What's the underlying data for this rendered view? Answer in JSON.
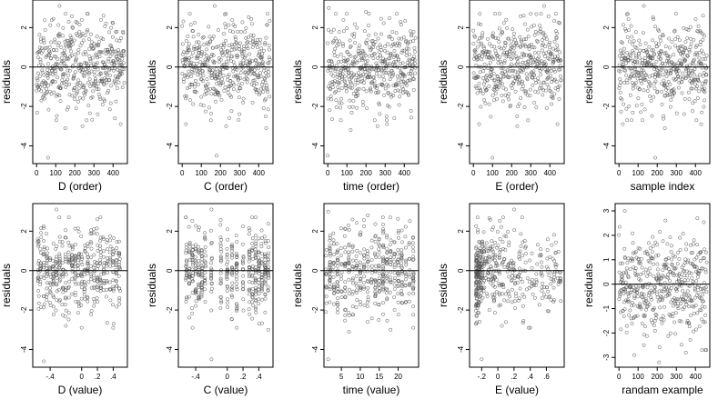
{
  "chart_data": [
    {
      "type": "scatter",
      "title": "",
      "xlabel": "D (order)",
      "ylabel": "residuals",
      "xlim": [
        -20,
        475
      ],
      "ylim": [
        -4.9,
        3.4
      ],
      "x_ticks": [
        0,
        100,
        200,
        300,
        400
      ],
      "y_ticks": [
        -4,
        -2,
        0,
        2
      ],
      "hline": 0,
      "points": {
        "gen": "order",
        "n": 460,
        "seed": 11
      },
      "extreme_points": [
        [
          120,
          3.1
        ],
        [
          350,
          2.6
        ],
        [
          60,
          -4.6
        ],
        [
          150,
          -3.1
        ],
        [
          240,
          -3.0
        ],
        [
          440,
          -2.9
        ]
      ]
    },
    {
      "type": "scatter",
      "title": "",
      "xlabel": "C (order)",
      "ylabel": "residuals",
      "xlim": [
        -20,
        475
      ],
      "ylim": [
        -4.9,
        3.4
      ],
      "x_ticks": [
        0,
        100,
        200,
        300,
        400
      ],
      "y_ticks": [
        -4,
        -2,
        0,
        2
      ],
      "hline": 0,
      "points": {
        "gen": "order",
        "n": 460,
        "seed": 23
      },
      "extreme_points": [
        [
          170,
          3.1
        ],
        [
          40,
          2.7
        ],
        [
          180,
          -4.5
        ],
        [
          230,
          -3.0
        ],
        [
          440,
          -3.1
        ],
        [
          20,
          -2.9
        ]
      ]
    },
    {
      "type": "scatter",
      "title": "",
      "xlabel": "time (order)",
      "ylabel": "residuals",
      "xlim": [
        -20,
        475
      ],
      "ylim": [
        -4.9,
        3.4
      ],
      "x_ticks": [
        0,
        100,
        200,
        300,
        400
      ],
      "y_ticks": [
        -4,
        -2,
        0,
        2
      ],
      "hline": 0,
      "points": {
        "gen": "order",
        "n": 460,
        "seed": 37
      },
      "extreme_points": [
        [
          5,
          3.0
        ],
        [
          200,
          2.8
        ],
        [
          0,
          -4.5
        ],
        [
          120,
          -3.2
        ],
        [
          260,
          -3.0
        ],
        [
          310,
          -2.9
        ]
      ]
    },
    {
      "type": "scatter",
      "title": "",
      "xlabel": "E (order)",
      "ylabel": "residuals",
      "xlim": [
        -20,
        475
      ],
      "ylim": [
        -4.9,
        3.4
      ],
      "x_ticks": [
        0,
        100,
        200,
        300,
        400
      ],
      "y_ticks": [
        -4,
        -2,
        0,
        2
      ],
      "hline": 0,
      "points": {
        "gen": "order",
        "n": 460,
        "seed": 51
      },
      "extreme_points": [
        [
          370,
          3.1
        ],
        [
          300,
          2.7
        ],
        [
          100,
          -4.6
        ],
        [
          440,
          -2.9
        ],
        [
          230,
          -3.0
        ],
        [
          30,
          -2.9
        ]
      ]
    },
    {
      "type": "scatter",
      "title": "",
      "xlabel": "sample index",
      "ylabel": "residuals",
      "xlim": [
        -20,
        475
      ],
      "ylim": [
        -4.9,
        3.4
      ],
      "x_ticks": [
        0,
        100,
        200,
        300,
        400
      ],
      "y_ticks": [
        -4,
        -2,
        0,
        2
      ],
      "hline": 0,
      "points": {
        "gen": "order",
        "n": 460,
        "seed": 67
      },
      "extreme_points": [
        [
          130,
          3.1
        ],
        [
          440,
          2.6
        ],
        [
          190,
          -4.6
        ],
        [
          240,
          -3.1
        ],
        [
          430,
          -2.9
        ],
        [
          20,
          -2.9
        ]
      ]
    },
    {
      "type": "scatter",
      "title": "",
      "xlabel": "D (value)",
      "ylabel": "residuals",
      "xlim": [
        -0.62,
        0.58
      ],
      "ylim": [
        -4.9,
        3.4
      ],
      "x_ticks": [
        -0.4,
        0.0,
        0.2,
        0.4
      ],
      "y_ticks": [
        -4,
        -2,
        0,
        2
      ],
      "hline": 0,
      "points": {
        "gen": "values",
        "n": 460,
        "seed": 79,
        "levels": [
          -0.55,
          -0.52,
          -0.48,
          -0.44,
          -0.4,
          -0.36,
          -0.32,
          -0.28,
          -0.24,
          -0.2,
          -0.16,
          -0.12,
          -0.08,
          -0.04,
          0.0,
          0.04,
          0.08,
          0.12,
          0.16,
          0.2,
          0.24,
          0.28,
          0.32,
          0.36,
          0.4,
          0.44,
          0.48
        ],
        "jitter": 0.008
      },
      "extreme_points": [
        [
          -0.32,
          3.1
        ],
        [
          0.2,
          2.6
        ],
        [
          -0.48,
          -4.6
        ],
        [
          0.0,
          -2.9
        ],
        [
          0.4,
          -2.9
        ],
        [
          -0.2,
          -2.8
        ]
      ]
    },
    {
      "type": "scatter",
      "title": "",
      "xlabel": "C (value)",
      "ylabel": "residuals",
      "xlim": [
        -0.62,
        0.58
      ],
      "ylim": [
        -4.9,
        3.4
      ],
      "x_ticks": [
        -0.4,
        0.0,
        0.2,
        0.4
      ],
      "y_ticks": [
        -4,
        -2,
        0,
        2
      ],
      "hline": 0,
      "points": {
        "gen": "values",
        "n": 460,
        "seed": 97,
        "levels": [
          -0.52,
          -0.48,
          -0.44,
          -0.4,
          -0.36,
          -0.32,
          -0.28,
          -0.2,
          -0.08,
          0.0,
          0.06,
          0.12,
          0.2,
          0.28,
          0.32,
          0.36,
          0.4,
          0.44,
          0.48,
          0.52
        ],
        "jitter": 0.006
      },
      "extreme_points": [
        [
          -0.2,
          3.1
        ],
        [
          0.36,
          2.7
        ],
        [
          -0.2,
          -4.5
        ],
        [
          0.52,
          -3.0
        ],
        [
          -0.44,
          -2.9
        ],
        [
          0.12,
          -2.9
        ]
      ]
    },
    {
      "type": "scatter",
      "title": "",
      "xlabel": "time (value)",
      "ylabel": "residuals",
      "xlim": [
        0.4,
        25.4
      ],
      "ylim": [
        -4.9,
        3.4
      ],
      "x_ticks": [
        5,
        10,
        15,
        20
      ],
      "y_ticks": [
        -4,
        -2,
        0,
        2
      ],
      "hline": 0,
      "points": {
        "gen": "values",
        "n": 460,
        "seed": 131,
        "levels": [
          1,
          2,
          3,
          4,
          5,
          6,
          7,
          8,
          9,
          10,
          11,
          12,
          13,
          14,
          15,
          16,
          17,
          18,
          19,
          20,
          21,
          22,
          23,
          24
        ],
        "jitter": 0.12
      },
      "extreme_points": [
        [
          1.5,
          3.0
        ],
        [
          12,
          2.8
        ],
        [
          1.5,
          -4.5
        ],
        [
          7,
          -3.1
        ],
        [
          18,
          -3.0
        ],
        [
          24,
          -2.9
        ]
      ]
    },
    {
      "type": "scatter",
      "title": "",
      "xlabel": "E (value)",
      "ylabel": "residuals",
      "xlim": [
        -0.35,
        0.82
      ],
      "ylim": [
        -4.9,
        3.4
      ],
      "x_ticks": [
        -0.2,
        0.0,
        0.2,
        0.4,
        0.6
      ],
      "y_ticks": [
        -4,
        -2,
        0,
        2
      ],
      "hline": 0,
      "points": {
        "gen": "skew",
        "n": 460,
        "seed": 151
      },
      "extreme_points": [
        [
          0.2,
          3.1
        ],
        [
          0.3,
          2.7
        ],
        [
          -0.2,
          -4.5
        ],
        [
          0.4,
          -2.9
        ],
        [
          0.38,
          -2.9
        ],
        [
          0.05,
          -2.8
        ]
      ]
    },
    {
      "type": "scatter",
      "title": "",
      "xlabel": "randam example",
      "ylabel": "residuals",
      "xlim": [
        -20,
        475
      ],
      "ylim": [
        -3.4,
        3.3
      ],
      "x_ticks": [
        0,
        100,
        200,
        300,
        400
      ],
      "y_ticks": [
        -3,
        -2,
        -1,
        0,
        1,
        2,
        3
      ],
      "hline": 0,
      "points": {
        "gen": "order",
        "n": 460,
        "seed": 173
      },
      "extreme_points": [
        [
          30,
          3.0
        ],
        [
          410,
          2.7
        ],
        [
          210,
          -3.2
        ],
        [
          80,
          -2.9
        ],
        [
          350,
          -2.8
        ],
        [
          130,
          -2.5
        ]
      ]
    }
  ]
}
